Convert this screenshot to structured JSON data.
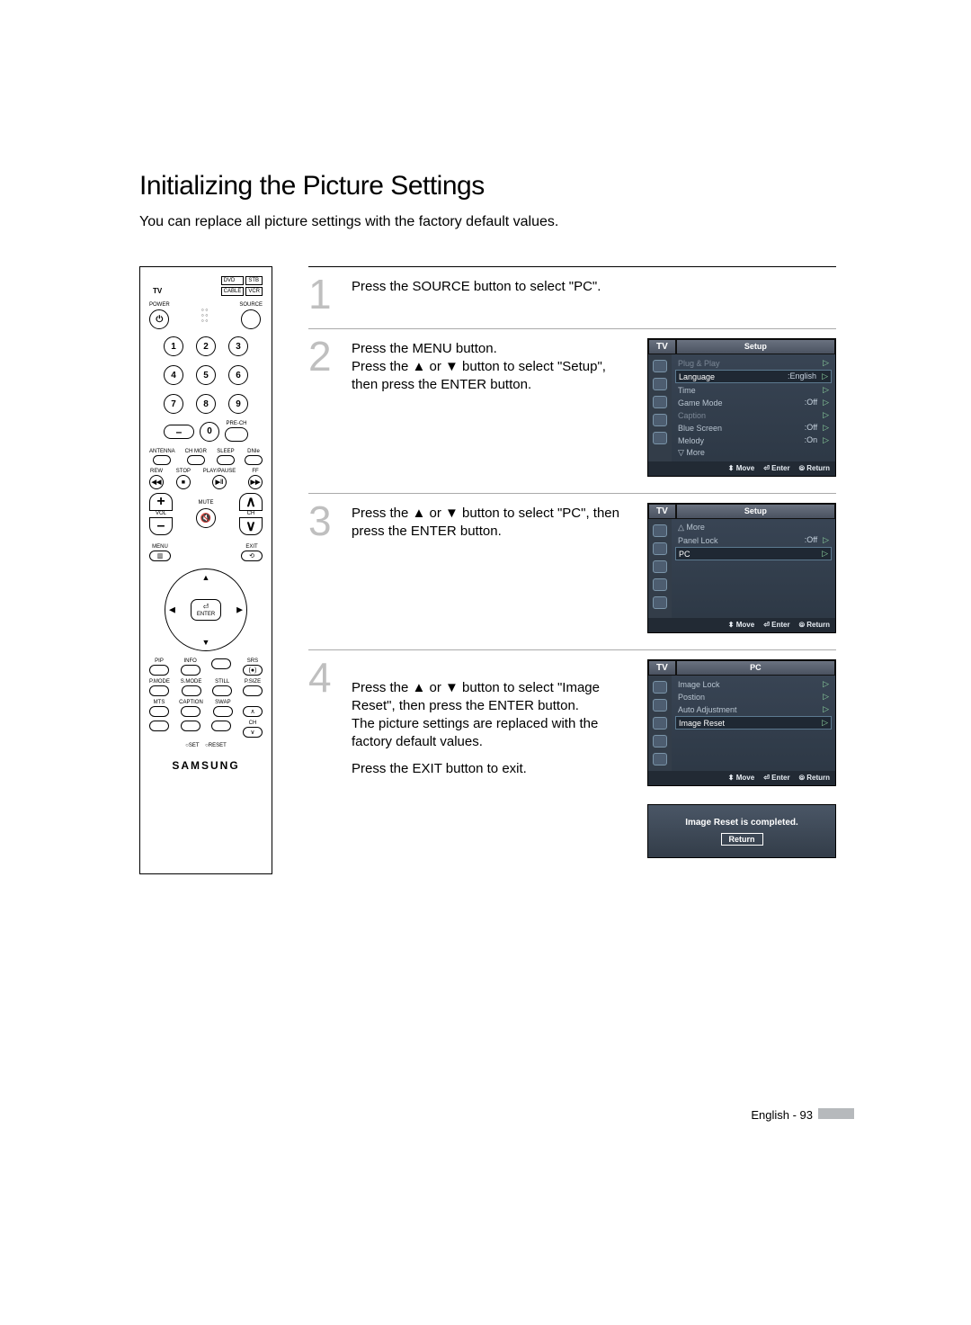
{
  "page": {
    "title": "Initializing the Picture Settings",
    "subtitle": "You can replace all picture settings with the factory default values.",
    "footer": "English - 93"
  },
  "remote": {
    "device_modes": [
      "DVD",
      "STB",
      "CABLE",
      "VCR"
    ],
    "tv_label": "TV",
    "power": "POWER",
    "source": "SOURCE",
    "numbers": [
      "1",
      "2",
      "3",
      "4",
      "5",
      "6",
      "7",
      "8",
      "9",
      "0"
    ],
    "prech": "PRE-CH",
    "dash": "–",
    "row_labels_a": [
      "ANTENNA",
      "CH MGR",
      "SLEEP",
      "DNIe"
    ],
    "row_labels_b": [
      "REW",
      "STOP",
      "PLAY/PAUSE",
      "FF"
    ],
    "vol": "VOL",
    "ch": "CH",
    "mute": "MUTE",
    "menu": "MENU",
    "exit": "EXIT",
    "enter": "ENTER",
    "row_labels_c": [
      "PIP",
      "INFO",
      "",
      "SRS"
    ],
    "row_labels_d": [
      "P.MODE",
      "S.MODE",
      "STILL",
      "P.SIZE"
    ],
    "row_labels_e": [
      "MTS",
      "CAPTION",
      "SWAP",
      ""
    ],
    "row_labels_f": [
      "",
      "",
      "",
      "CH"
    ],
    "set": "SET",
    "reset": "RESET",
    "brand": "SAMSUNG"
  },
  "steps": [
    {
      "n": "1",
      "text": "Press the SOURCE button to select \"PC\"."
    },
    {
      "n": "2",
      "text": "Press the MENU button.\nPress the ▲ or ▼ button to select \"Setup\", then press the ENTER button."
    },
    {
      "n": "3",
      "text": "Press the ▲ or ▼ button to select \"PC\", then press the ENTER button."
    },
    {
      "n": "4",
      "text": "Press the ▲ or ▼ button to select \"Image Reset\", then press the ENTER button.\nThe picture settings are replaced with the factory default values.",
      "text2": "Press the EXIT button to exit."
    }
  ],
  "osd": {
    "colors": {
      "bg_top": "#3a4656",
      "bg_bot": "#2c3744",
      "hl_border": "#5c7a90",
      "arrow": "#8bcf9d",
      "text": "#b8c4d0",
      "dim": "#7c8896"
    },
    "foot": {
      "move": "Move",
      "enter": "Enter",
      "return": "Return",
      "move_sym": "⬍",
      "enter_sym": "⏎",
      "return_sym": "⦾"
    },
    "setup1": {
      "tab": "TV",
      "title": "Setup",
      "rows": [
        {
          "label": "Plug & Play",
          "dim": true,
          "arr": true
        },
        {
          "label": "Language",
          "val": ":English",
          "hl": true,
          "arr": true
        },
        {
          "label": "Time",
          "arr": true
        },
        {
          "label": "Game Mode",
          "val": ":Off",
          "arr": true
        },
        {
          "label": "Caption",
          "dim": true,
          "arr": true
        },
        {
          "label": "Blue Screen",
          "val": ":Off",
          "arr": true
        },
        {
          "label": "Melody",
          "val": ":On",
          "arr": true
        },
        {
          "label": "▽ More"
        }
      ]
    },
    "setup2": {
      "tab": "TV",
      "title": "Setup",
      "rows": [
        {
          "label": "△ More"
        },
        {
          "label": "Panel Lock",
          "val": ":Off",
          "arr": true
        },
        {
          "label": "PC",
          "hl": true,
          "arr": true
        }
      ]
    },
    "pc": {
      "tab": "TV",
      "title": "PC",
      "rows": [
        {
          "label": "Image Lock",
          "arr": true
        },
        {
          "label": "Postion",
          "arr": true
        },
        {
          "label": "Auto Adjustment",
          "arr": true
        },
        {
          "label": "Image Reset",
          "hl": true,
          "arr": true
        }
      ]
    },
    "msg": {
      "text": "Image Reset is completed.",
      "button": "Return"
    }
  }
}
